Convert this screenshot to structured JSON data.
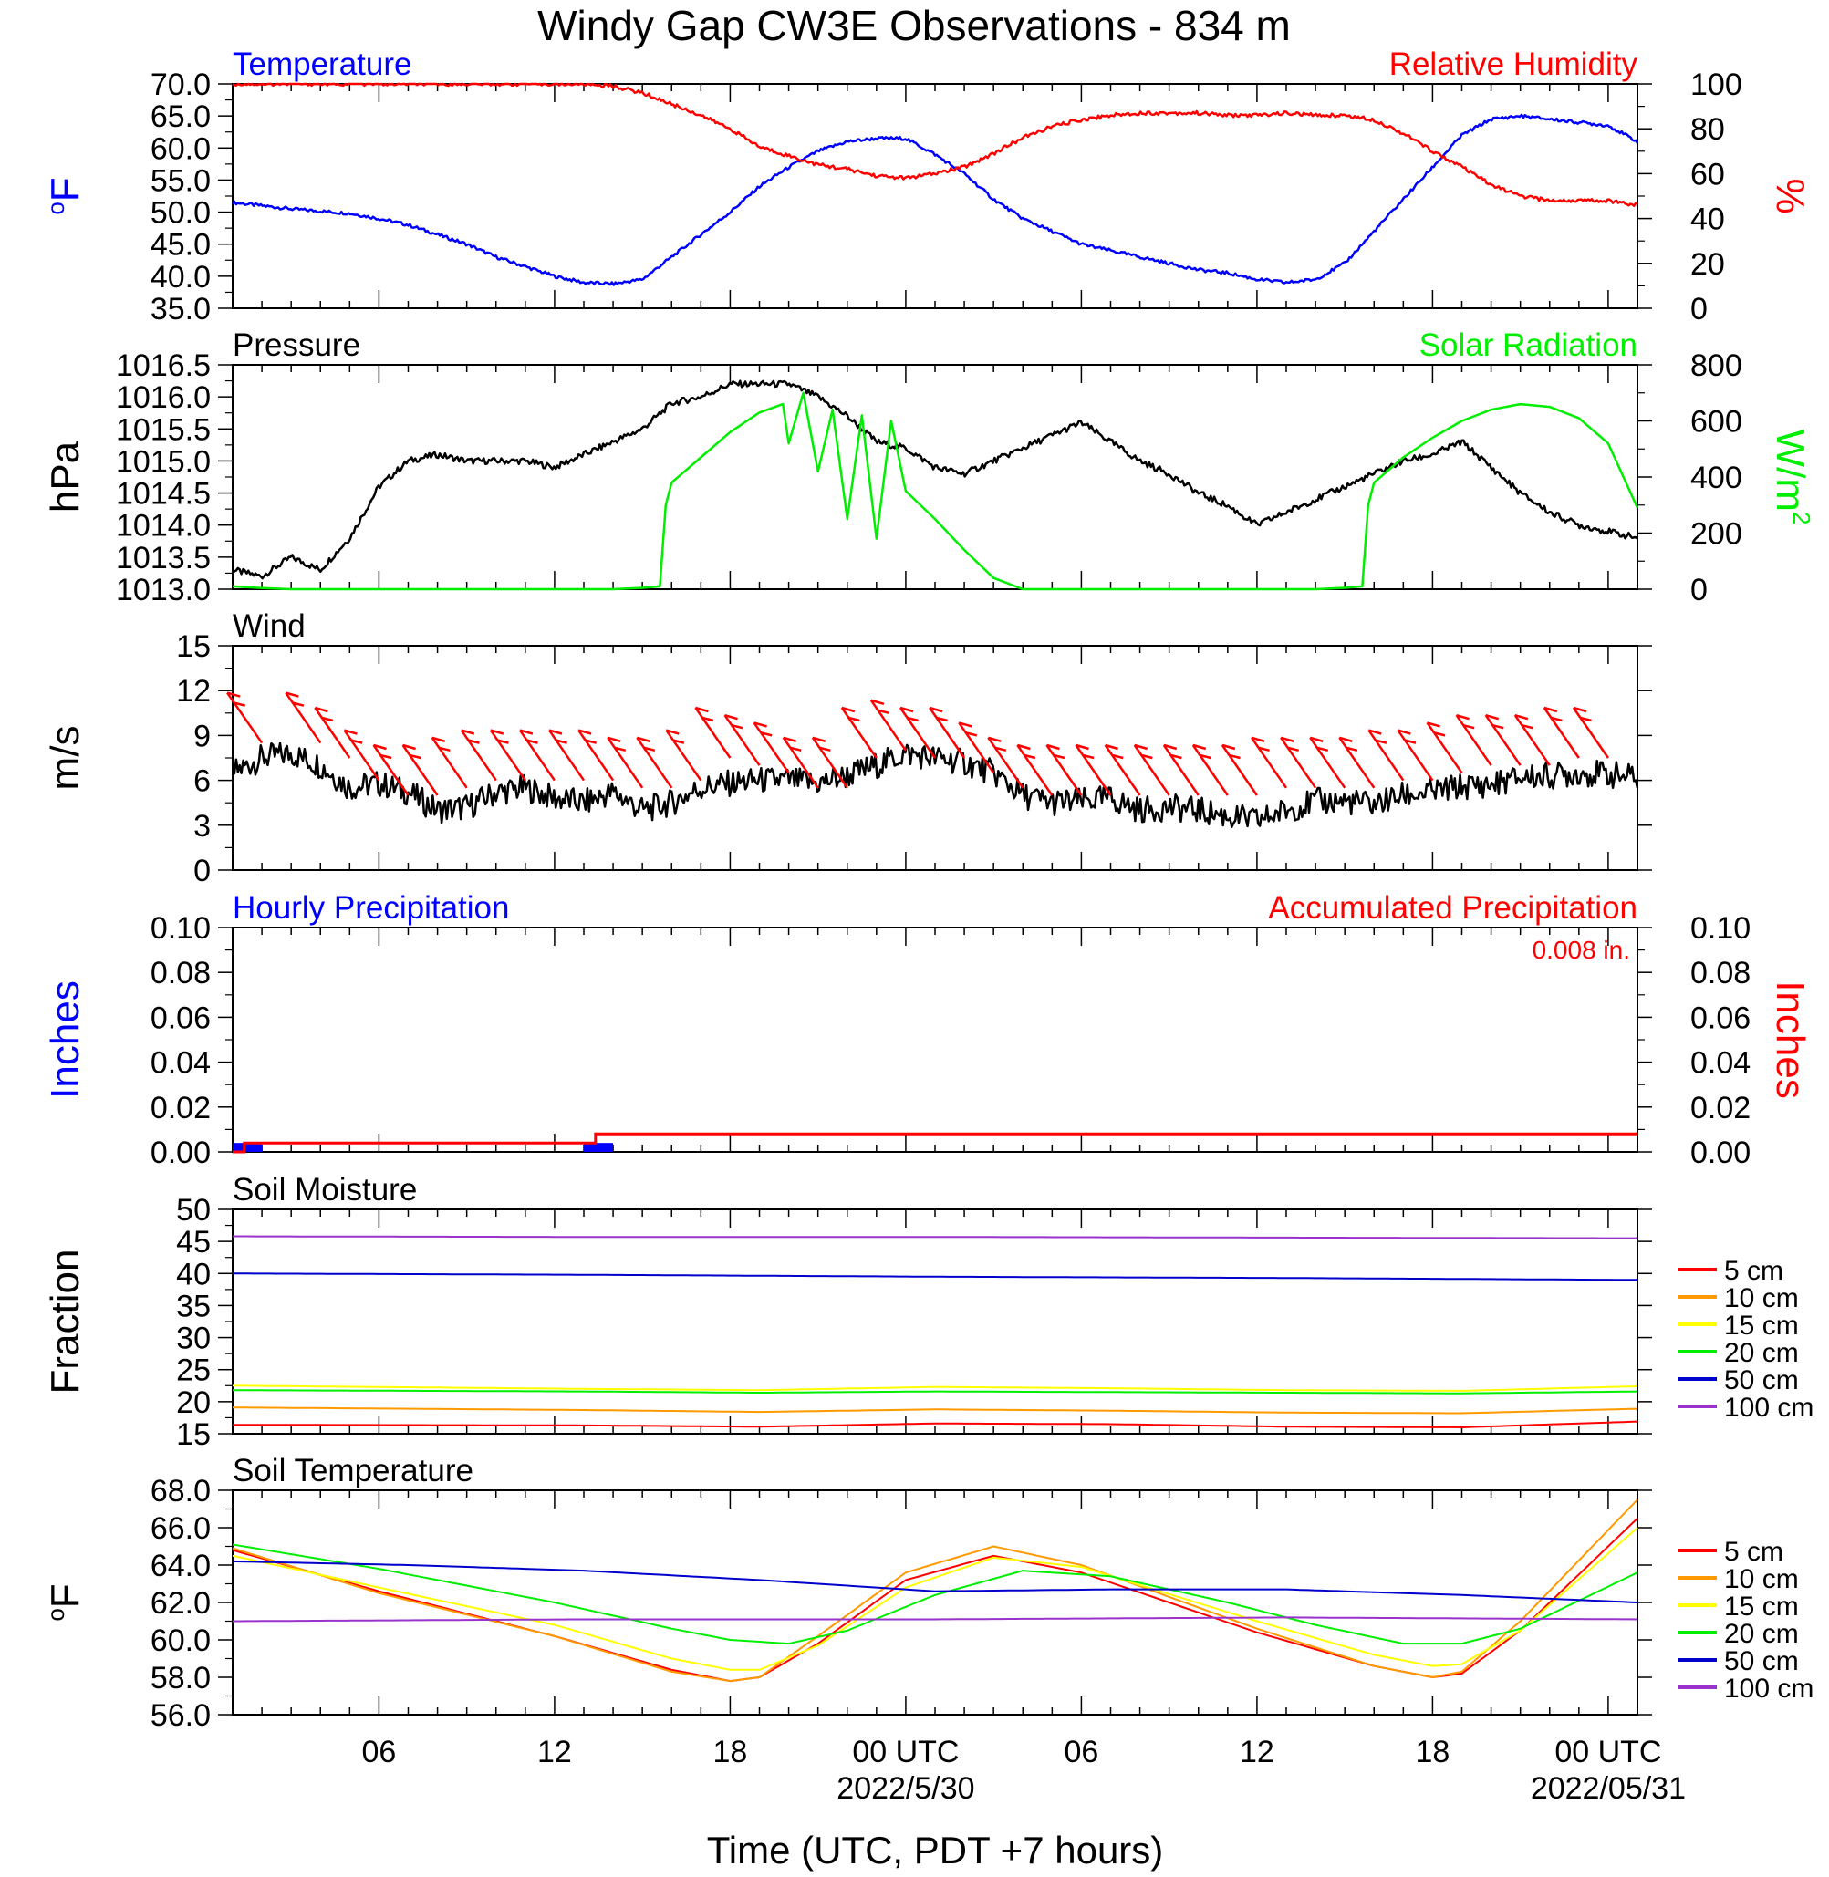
{
  "title": "Windy Gap CW3E Observations - 834 m",
  "x_axis": {
    "label": "Time (UTC, PDT +7 hours)",
    "ticks": [
      {
        "h": 6,
        "label": "06",
        "date": ""
      },
      {
        "h": 12,
        "label": "12",
        "date": ""
      },
      {
        "h": 18,
        "label": "18",
        "date": ""
      },
      {
        "h": 24,
        "label": "00 UTC",
        "date": "2022/5/30"
      },
      {
        "h": 30,
        "label": "06",
        "date": ""
      },
      {
        "h": 36,
        "label": "12",
        "date": ""
      },
      {
        "h": 42,
        "label": "18",
        "date": ""
      },
      {
        "h": 48,
        "label": "00 UTC",
        "date": "2022/05/31"
      }
    ],
    "range_hours": [
      1,
      49
    ]
  },
  "colors": {
    "blue": "#0000ff",
    "red": "#ff0000",
    "black": "#000000",
    "green": "#00ee00",
    "orange": "#ff9900",
    "yellow": "#ffff00",
    "navy": "#0000cc",
    "purple": "#9933cc"
  },
  "chart_data": [
    {
      "type": "line",
      "title_left": "Temperature",
      "title_right": "Relative Humidity",
      "ylabel_left": "oF",
      "ylabel_right": "%",
      "ylim_left": [
        35,
        70
      ],
      "ylim_right": [
        0,
        100
      ],
      "yticks_left": [
        "35.0",
        "40.0",
        "45.0",
        "50.0",
        "55.0",
        "60.0",
        "65.0",
        "70.0"
      ],
      "yticks_right": [
        "0",
        "20",
        "40",
        "60",
        "80",
        "100"
      ],
      "series": [
        {
          "axis": "left",
          "color": "#0000ff",
          "x": [
            1,
            3,
            5,
            6,
            7,
            8,
            9,
            10,
            11,
            12,
            13,
            14,
            15,
            16,
            17,
            18,
            19,
            20,
            21,
            22,
            23,
            24,
            25,
            26,
            27,
            28,
            29,
            30,
            31,
            32,
            33,
            34,
            35,
            36,
            37,
            38,
            39,
            40,
            41,
            42,
            43,
            44,
            45,
            46,
            47,
            48,
            49
          ],
          "y": [
            51.5,
            50.5,
            49.8,
            49,
            48,
            46.5,
            45,
            43,
            41.5,
            40,
            39,
            38.8,
            39.5,
            43,
            46.5,
            50,
            54,
            57,
            59.5,
            61,
            61.5,
            61.5,
            59,
            56,
            52,
            49,
            47,
            45,
            44,
            43,
            42,
            41,
            40.5,
            39.5,
            39,
            39.5,
            42,
            47,
            52,
            57,
            62,
            64.5,
            65,
            64.5,
            64,
            63.5,
            61
          ]
        },
        {
          "axis": "right",
          "color": "#ff0000",
          "x": [
            1,
            3,
            5,
            7,
            9,
            11,
            13,
            14,
            15,
            16,
            17,
            18,
            19,
            20,
            21,
            22,
            23,
            24,
            25,
            26,
            27,
            28,
            29,
            30,
            31,
            32,
            33,
            34,
            35,
            36,
            37,
            38,
            39,
            40,
            41,
            42,
            43,
            44,
            45,
            46,
            47,
            48,
            49
          ],
          "y": [
            100,
            100,
            100,
            100,
            100,
            100,
            100,
            99,
            96,
            91,
            86,
            80,
            72,
            68,
            64,
            62,
            59,
            58,
            60,
            63,
            69,
            76,
            81,
            84,
            86,
            87,
            87,
            87,
            86,
            86,
            87,
            86,
            86,
            84,
            78,
            70,
            63,
            55,
            50,
            48,
            48,
            48,
            46
          ]
        }
      ]
    },
    {
      "type": "line",
      "title_left": "Pressure",
      "title_right": "Solar Radiation",
      "ylabel_left": "hPa",
      "ylabel_right": "W/m2",
      "ylim_left": [
        1013,
        1016.5
      ],
      "ylim_right": [
        0,
        800
      ],
      "yticks_left": [
        "1013.0",
        "1013.5",
        "1014.0",
        "1014.5",
        "1015.0",
        "1015.5",
        "1016.0",
        "1016.5"
      ],
      "yticks_right": [
        "0",
        "200",
        "400",
        "600",
        "800"
      ],
      "series": [
        {
          "axis": "left",
          "color": "#000000",
          "x": [
            1,
            2,
            3,
            4,
            5,
            6,
            7,
            8,
            9,
            10,
            11,
            12,
            13,
            14,
            15,
            16,
            17,
            18,
            19,
            20,
            21,
            22,
            23,
            24,
            25,
            26,
            27,
            28,
            29,
            30,
            31,
            32,
            33,
            34,
            35,
            36,
            37,
            38,
            39,
            40,
            41,
            42,
            43,
            44,
            45,
            46,
            47,
            48,
            49
          ],
          "y": [
            1013.3,
            1013.2,
            1013.5,
            1013.3,
            1013.8,
            1014.6,
            1015.0,
            1015.1,
            1015.0,
            1015.0,
            1015.0,
            1014.9,
            1015.1,
            1015.3,
            1015.5,
            1015.9,
            1016.0,
            1016.2,
            1016.2,
            1016.2,
            1016.0,
            1015.7,
            1015.3,
            1015.2,
            1014.9,
            1014.8,
            1015.0,
            1015.2,
            1015.4,
            1015.6,
            1015.3,
            1015.0,
            1014.8,
            1014.5,
            1014.3,
            1014.0,
            1014.2,
            1014.4,
            1014.6,
            1014.8,
            1015.0,
            1015.1,
            1015.3,
            1014.9,
            1014.5,
            1014.2,
            1014.0,
            1013.9,
            1013.8
          ]
        },
        {
          "axis": "right",
          "color": "#00ee00",
          "x": [
            1,
            2,
            3,
            4,
            6,
            8,
            10,
            12,
            13,
            14,
            15,
            15.6,
            15.8,
            16,
            17,
            18,
            19,
            19.8,
            20,
            20.5,
            21,
            21.5,
            22,
            22.5,
            23,
            23.5,
            24,
            25,
            26,
            27,
            28,
            29,
            30,
            31,
            32,
            33,
            34,
            35,
            36,
            37,
            38,
            39,
            39.6,
            39.8,
            40,
            41,
            42,
            43,
            44,
            45,
            46,
            47,
            48,
            49
          ],
          "y": [
            10,
            4,
            0,
            0,
            0,
            0,
            0,
            0,
            0,
            0,
            5,
            10,
            300,
            380,
            470,
            560,
            630,
            660,
            520,
            700,
            420,
            640,
            250,
            620,
            180,
            600,
            350,
            250,
            140,
            40,
            0,
            0,
            0,
            0,
            0,
            0,
            0,
            0,
            0,
            0,
            0,
            5,
            10,
            300,
            380,
            470,
            540,
            600,
            640,
            660,
            650,
            610,
            520,
            290
          ]
        }
      ]
    },
    {
      "type": "line",
      "title_left": "Wind",
      "ylabel_left": "m/s",
      "ylim_left": [
        0,
        15
      ],
      "yticks_left": [
        "0",
        "3",
        "6",
        "9",
        "12",
        "15"
      ],
      "series": [
        {
          "axis": "left",
          "color": "#000000",
          "x": [
            1,
            2,
            3,
            4,
            5,
            6,
            7,
            8,
            9,
            10,
            11,
            12,
            13,
            14,
            15,
            16,
            17,
            18,
            19,
            20,
            21,
            22,
            23,
            24,
            25,
            26,
            27,
            28,
            29,
            30,
            31,
            32,
            33,
            34,
            35,
            36,
            37,
            38,
            39,
            40,
            41,
            42,
            43,
            44,
            45,
            46,
            47,
            48,
            49
          ],
          "y": [
            6.5,
            7.5,
            7.8,
            7.0,
            5.5,
            5.8,
            5.2,
            4.0,
            4.2,
            5.2,
            5.5,
            4.8,
            4.5,
            5.2,
            4.0,
            4.5,
            5.5,
            5.8,
            6.0,
            6.0,
            5.8,
            6.3,
            7.0,
            7.8,
            7.5,
            7.2,
            6.5,
            5.0,
            4.5,
            4.6,
            4.8,
            4.0,
            4.2,
            4.0,
            3.6,
            3.3,
            4.0,
            4.6,
            4.6,
            4.4,
            5.0,
            5.2,
            5.6,
            5.7,
            6.2,
            6.3,
            6.5,
            6.4,
            6.2
          ]
        }
      ]
    },
    {
      "type": "bar",
      "title_left": "Hourly Precipitation",
      "title_right": "Accumulated Precipitation",
      "note_right": "0.008 in.",
      "ylabel_left": "Inches",
      "ylabel_right": "Inches",
      "ylim_left": [
        0,
        0.1
      ],
      "ylim_right": [
        0,
        0.1
      ],
      "yticks_left": [
        "0.00",
        "0.02",
        "0.04",
        "0.06",
        "0.08",
        "0.10"
      ],
      "yticks_right": [
        "0.00",
        "0.02",
        "0.04",
        "0.06",
        "0.08",
        "0.10"
      ],
      "hourly": [
        {
          "x": 1,
          "width": 1,
          "value": 0.004
        },
        {
          "x": 13,
          "width": 1,
          "value": 0.004
        }
      ],
      "accum_x": [
        1,
        1.4,
        1.4,
        13.4,
        13.4,
        49
      ],
      "accum_y": [
        0.0,
        0.0,
        0.004,
        0.004,
        0.008,
        0.008
      ]
    },
    {
      "type": "line",
      "title_left": "Soil Moisture",
      "ylabel_left": "Fraction",
      "ylim_left": [
        15,
        50
      ],
      "yticks_left": [
        "15",
        "20",
        "25",
        "30",
        "35",
        "40",
        "45",
        "50"
      ],
      "legend": [
        "5 cm",
        "10 cm",
        "15 cm",
        "20 cm",
        "50 cm",
        "100 cm"
      ],
      "series": [
        {
          "name": "5 cm",
          "color": "#ff0000",
          "x": [
            1,
            13,
            19,
            25,
            31,
            37,
            43,
            49
          ],
          "y": [
            16.4,
            16.3,
            16.1,
            16.6,
            16.5,
            16.1,
            16.0,
            16.9
          ]
        },
        {
          "name": "10 cm",
          "color": "#ff9900",
          "x": [
            1,
            13,
            19,
            25,
            31,
            37,
            43,
            49
          ],
          "y": [
            19.1,
            18.7,
            18.4,
            18.8,
            18.6,
            18.3,
            18.2,
            18.9
          ]
        },
        {
          "name": "15 cm",
          "color": "#ffff00",
          "x": [
            1,
            13,
            19,
            25,
            31,
            37,
            43,
            49
          ],
          "y": [
            22.5,
            22.0,
            21.8,
            22.3,
            22.1,
            21.8,
            21.7,
            22.4
          ]
        },
        {
          "name": "20 cm",
          "color": "#00ee00",
          "x": [
            1,
            13,
            19,
            25,
            31,
            37,
            43,
            49
          ],
          "y": [
            21.8,
            21.6,
            21.4,
            21.6,
            21.5,
            21.4,
            21.3,
            21.6
          ]
        },
        {
          "name": "50 cm",
          "color": "#0000cc",
          "x": [
            1,
            13,
            25,
            37,
            49
          ],
          "y": [
            40.0,
            39.8,
            39.5,
            39.3,
            39.0
          ]
        },
        {
          "name": "100 cm",
          "color": "#9933cc",
          "x": [
            1,
            13,
            25,
            37,
            49
          ],
          "y": [
            45.8,
            45.7,
            45.7,
            45.6,
            45.5
          ]
        }
      ]
    },
    {
      "type": "line",
      "title_left": "Soil Temperature",
      "ylabel_left": "oF",
      "ylim_left": [
        56,
        68
      ],
      "yticks_left": [
        "56.0",
        "58.0",
        "60.0",
        "62.0",
        "64.0",
        "66.0",
        "68.0"
      ],
      "legend": [
        "5 cm",
        "10 cm",
        "15 cm",
        "20 cm",
        "50 cm",
        "100 cm"
      ],
      "series": [
        {
          "name": "5 cm",
          "color": "#ff0000",
          "x": [
            1,
            6,
            12,
            16,
            18,
            19,
            21,
            24,
            27,
            30,
            36,
            40,
            42,
            43,
            45,
            49
          ],
          "y": [
            64.8,
            62.6,
            60.2,
            58.4,
            57.8,
            58.0,
            59.8,
            63.2,
            64.5,
            63.6,
            60.4,
            58.6,
            58.0,
            58.2,
            60.5,
            66.5
          ]
        },
        {
          "name": "10 cm",
          "color": "#ff9900",
          "x": [
            1,
            6,
            12,
            16,
            18,
            19,
            21,
            24,
            27,
            30,
            36,
            40,
            42,
            43,
            45,
            49
          ],
          "y": [
            64.9,
            62.5,
            60.2,
            58.3,
            57.8,
            58.0,
            60.2,
            63.6,
            65.0,
            64.0,
            60.6,
            58.6,
            58.0,
            58.3,
            61.0,
            67.5
          ]
        },
        {
          "name": "15 cm",
          "color": "#ffff00",
          "x": [
            1,
            6,
            12,
            16,
            18,
            19,
            21,
            24,
            27,
            30,
            36,
            40,
            42,
            43,
            45,
            49
          ],
          "y": [
            64.5,
            62.8,
            60.8,
            59.0,
            58.4,
            58.4,
            59.7,
            62.8,
            64.4,
            63.9,
            61.0,
            59.2,
            58.6,
            58.7,
            60.5,
            66.0
          ]
        },
        {
          "name": "20 cm",
          "color": "#00ee00",
          "x": [
            1,
            6,
            12,
            16,
            18,
            20,
            22,
            25,
            28,
            31,
            35,
            38,
            41,
            43,
            45,
            49
          ],
          "y": [
            65.1,
            63.8,
            62.0,
            60.6,
            60.0,
            59.8,
            60.5,
            62.4,
            63.7,
            63.4,
            62.0,
            60.8,
            59.8,
            59.8,
            60.6,
            63.6
          ]
        },
        {
          "name": "50 cm",
          "color": "#0000cc",
          "x": [
            1,
            7,
            13,
            19,
            25,
            31,
            37,
            43,
            49
          ],
          "y": [
            64.2,
            64.0,
            63.7,
            63.2,
            62.6,
            62.7,
            62.7,
            62.4,
            62.0
          ]
        },
        {
          "name": "100 cm",
          "color": "#9933cc",
          "x": [
            1,
            13,
            25,
            37,
            49
          ],
          "y": [
            61.0,
            61.1,
            61.1,
            61.2,
            61.1
          ]
        }
      ]
    }
  ],
  "wind_barbs": {
    "color": "#ff0000",
    "x": [
      2,
      4,
      5,
      6,
      7,
      8,
      9,
      10,
      11,
      12,
      13,
      14,
      15,
      16,
      17,
      18,
      19,
      20,
      21,
      22,
      23,
      24,
      25,
      26,
      27,
      28,
      29,
      30,
      31,
      32,
      33,
      34,
      35,
      36,
      37,
      38,
      39,
      40,
      41,
      42,
      43,
      44,
      45,
      46,
      47,
      48
    ],
    "speed": [
      8.5,
      8.5,
      7.5,
      6,
      5,
      5,
      5.5,
      6,
      6,
      6,
      6,
      6,
      5.5,
      5.5,
      6,
      7.5,
      7,
      6.5,
      5.5,
      5.5,
      7.5,
      8,
      7.5,
      7.5,
      6.5,
      5.5,
      5,
      5,
      5,
      5,
      5,
      5,
      5,
      5,
      5.5,
      5.5,
      5.5,
      5.5,
      6,
      6,
      6.5,
      7,
      7,
      7,
      7.5,
      7.5
    ]
  }
}
